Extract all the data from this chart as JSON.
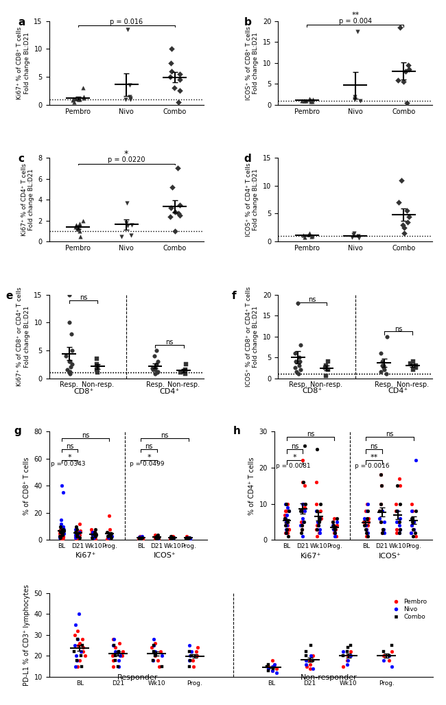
{
  "colors": {
    "pembro": "#FF0000",
    "nivo": "#0000FF",
    "combo": "#000000",
    "dot": "#333333"
  },
  "panel_a": {
    "ylabel": "Ki67⁺ % of CD8⁺ T cells\nFold change BL:D21",
    "ylim": [
      0,
      15
    ],
    "yticks": [
      0,
      5,
      10,
      15
    ],
    "pembro": [
      1.1,
      1.0,
      0.8,
      0.5,
      1.2,
      1.05,
      0.9,
      3.0,
      1.5
    ],
    "nivo": [
      13.5,
      1.0,
      0.9,
      1.5,
      1.2,
      3.5
    ],
    "combo": [
      10.0,
      7.5,
      6.0,
      5.5,
      5.0,
      4.5,
      3.0,
      2.5,
      0.5
    ],
    "sig_text": "p = 0.016",
    "sig_stars": null
  },
  "panel_b": {
    "ylabel": "ICOS⁺ % of CD8⁺ T cells\nFold change BL:D21",
    "ylim": [
      0,
      20
    ],
    "yticks": [
      0,
      5,
      10,
      15,
      20
    ],
    "pembro": [
      1.5,
      1.0,
      0.8,
      1.0,
      1.1,
      0.9,
      1.2,
      1.0,
      0.85
    ],
    "nivo": [
      17.5,
      1.5,
      1.0,
      2.0,
      1.2
    ],
    "combo": [
      18.5,
      9.5,
      8.5,
      8.0,
      5.5,
      5.8,
      0.5
    ],
    "sig_text": "p = 0.004",
    "sig_stars": "**"
  },
  "panel_c": {
    "ylabel": "Ki67⁺ % of CD4⁺ T cells\nFold change BL:D21",
    "ylim": [
      0,
      8
    ],
    "yticks": [
      0,
      2,
      4,
      6,
      8
    ],
    "pembro": [
      1.7,
      1.6,
      1.5,
      1.4,
      1.3,
      1.2,
      1.0,
      0.5,
      2.0
    ],
    "nivo": [
      3.7,
      1.8,
      1.6,
      1.5,
      0.6,
      0.5
    ],
    "combo": [
      7.0,
      5.2,
      3.5,
      3.2,
      2.8,
      2.7,
      2.5,
      2.4,
      1.0
    ],
    "sig_text": "p = 0.0220",
    "sig_stars": "*"
  },
  "panel_d": {
    "ylabel": "ICOS⁺ % of CD4⁺ T cells\nFold change BL:D21",
    "ylim": [
      0,
      15
    ],
    "yticks": [
      0,
      5,
      10,
      15
    ],
    "pembro": [
      1.5,
      1.2,
      1.0,
      0.9,
      1.1,
      1.3,
      0.8
    ],
    "nivo": [
      1.5,
      1.2,
      1.0,
      0.8,
      0.6
    ],
    "combo": [
      11.0,
      7.0,
      5.5,
      4.5,
      3.5,
      3.0,
      2.5,
      1.5
    ],
    "sig_text": null,
    "sig_stars": null
  },
  "panel_e": {
    "ylabel": "Ki67⁺ % of CD8⁺ or CD4⁺ T cells\nFold change BL:D21",
    "ylim": [
      0,
      15
    ],
    "yticks": [
      0,
      5,
      10,
      15
    ],
    "resp_cd8": [
      15,
      10,
      8,
      5,
      4,
      3,
      2.5,
      2,
      1.5,
      1.2,
      1.0,
      0.8,
      3.0
    ],
    "nonr_cd8": [
      3.5,
      2.0,
      2.5,
      1.5,
      1.0
    ],
    "resp_cd4": [
      5,
      4,
      3,
      2.5,
      2,
      1.8,
      1.5,
      1.2,
      1.0,
      0.8,
      1.5
    ],
    "nonr_cd4": [
      2.5,
      1.5,
      1.2,
      1.0,
      0.8
    ]
  },
  "panel_f": {
    "ylabel": "ICOS⁺ % of CD8⁺ or CD4⁺ T cells\nFold change BL:D21",
    "ylim": [
      0,
      20
    ],
    "yticks": [
      0,
      5,
      10,
      15,
      20
    ],
    "resp_cd8": [
      18,
      8,
      6,
      5,
      4,
      3,
      2.5,
      2,
      1.5,
      1.0,
      4.0
    ],
    "nonr_cd8": [
      4.0,
      3.0,
      2.5,
      2.0,
      0.5
    ],
    "resp_cd4": [
      10,
      6,
      4,
      3,
      2.5,
      2.0,
      1.5,
      1.0,
      3.0
    ],
    "nonr_cd4": [
      4.0,
      3.5,
      3.0,
      2.5,
      2.0
    ]
  },
  "panel_g": {
    "ylabel": "% of CD8⁺ T cells",
    "ylim": [
      0,
      80
    ],
    "yticks": [
      0,
      20,
      40,
      60,
      80
    ],
    "ki67_BL_p": [
      5,
      3,
      2,
      1.5,
      7,
      6,
      3,
      4,
      2,
      5,
      1,
      0.5,
      3,
      8,
      5
    ],
    "ki67_BL_n": [
      35,
      40,
      10,
      8,
      6,
      5,
      3,
      2,
      15,
      12
    ],
    "ki67_BL_c": [
      8,
      6,
      4,
      3,
      2,
      5,
      10,
      7,
      3
    ],
    "ki67_D21_p": [
      12,
      8,
      7,
      5,
      6,
      4,
      3,
      2,
      4,
      1,
      6
    ],
    "ki67_D21_n": [
      6,
      4,
      3,
      2,
      8,
      5
    ],
    "ki67_D21_c": [
      5,
      3,
      4,
      2,
      6,
      8,
      10
    ],
    "ki67_Wk10_p": [
      8,
      6,
      4,
      2,
      3,
      5,
      1,
      6
    ],
    "ki67_Wk10_n": [
      5,
      3,
      2,
      4,
      6
    ],
    "ki67_Wk10_c": [
      8,
      4,
      2,
      3,
      5,
      6
    ],
    "ki67_Prog_p": [
      18,
      8,
      5,
      3,
      2,
      4,
      1
    ],
    "ki67_Prog_n": [
      4,
      2,
      3,
      5
    ],
    "ki67_Prog_c": [
      3,
      2,
      4,
      5,
      6
    ],
    "icos_BL_p": [
      2,
      1.5,
      1,
      0.5,
      3,
      2,
      1,
      0.8,
      1.5,
      2,
      1
    ],
    "icos_BL_n": [
      3,
      2,
      1.5,
      1,
      0.8,
      2.5
    ],
    "icos_BL_c": [
      2,
      1.5,
      1,
      0.8,
      1.5,
      2
    ],
    "icos_D21_p": [
      4,
      3,
      2,
      1.5,
      1,
      2,
      3,
      1.5
    ],
    "icos_D21_n": [
      3,
      2,
      1.5,
      1,
      2
    ],
    "icos_D21_c": [
      4,
      2,
      3,
      1.5,
      2,
      1
    ],
    "icos_Wk10_p": [
      3,
      2,
      1.5,
      1,
      2,
      3
    ],
    "icos_Wk10_n": [
      2,
      1.5,
      1,
      2,
      1.5
    ],
    "icos_Wk10_c": [
      3,
      2,
      1.5,
      2,
      1
    ],
    "icos_Prog_p": [
      3,
      2,
      1.5,
      1,
      2
    ],
    "icos_Prog_n": [
      2,
      1.5,
      1,
      2
    ],
    "icos_Prog_c": [
      2,
      1.5,
      1,
      2,
      1.5
    ],
    "pval_ki67": "p = 0.0343",
    "pval_icos": "p = 0.0499"
  },
  "panel_h": {
    "ylabel": "% of CD4⁺ T cells",
    "ylim": [
      0,
      30
    ],
    "yticks": [
      0,
      10,
      20,
      30
    ],
    "ki67_BL_p": [
      10,
      8,
      6,
      5,
      3,
      2,
      4,
      5,
      6,
      7,
      8,
      4,
      3,
      2,
      5
    ],
    "ki67_BL_n": [
      10,
      8,
      6,
      5,
      4,
      3,
      2,
      9,
      7
    ],
    "ki67_BL_c": [
      10,
      8,
      6,
      5,
      4,
      3,
      2,
      1
    ],
    "ki67_D21_p": [
      22,
      16,
      15,
      10,
      9,
      8,
      5,
      4,
      3
    ],
    "ki67_D21_n": [
      10,
      8,
      6,
      5,
      4,
      1
    ],
    "ki67_D21_c": [
      26,
      16,
      10,
      8,
      5,
      4,
      3,
      2
    ],
    "ki67_Wk10_p": [
      16,
      10,
      8,
      6,
      5,
      4,
      3,
      2,
      1
    ],
    "ki67_Wk10_n": [
      8,
      6,
      5,
      4,
      3,
      2
    ],
    "ki67_Wk10_c": [
      25,
      10,
      8,
      6,
      5,
      4,
      3
    ],
    "ki67_Prog_p": [
      6,
      5,
      4,
      3,
      2,
      1
    ],
    "ki67_Prog_n": [
      5,
      4,
      3,
      2,
      1
    ],
    "ki67_Prog_c": [
      6,
      5,
      4,
      3,
      2
    ],
    "icos_BL_p": [
      10,
      8,
      6,
      5,
      3,
      2,
      4,
      5,
      1
    ],
    "icos_BL_n": [
      10,
      8,
      6,
      4,
      3,
      2
    ],
    "icos_BL_c": [
      8,
      6,
      4,
      3,
      2,
      1
    ],
    "icos_D21_p": [
      18,
      15,
      10,
      8,
      5,
      3,
      2
    ],
    "icos_D21_n": [
      8,
      6,
      5,
      3,
      2
    ],
    "icos_D21_c": [
      18,
      15,
      10,
      8,
      5,
      3,
      2
    ],
    "icos_Wk10_p": [
      17,
      15,
      10,
      8,
      5,
      3,
      2
    ],
    "icos_Wk10_n": [
      8,
      6,
      5,
      4,
      3,
      2
    ],
    "icos_Wk10_c": [
      15,
      10,
      8,
      5,
      3,
      2
    ],
    "icos_Prog_p": [
      10,
      8,
      5,
      4,
      3,
      2,
      1
    ],
    "icos_Prog_n": [
      8,
      6,
      5,
      4,
      3,
      2,
      22
    ],
    "icos_Prog_c": [
      8,
      6,
      5,
      3,
      2,
      1
    ],
    "pval_ki67": "p = 0.0081",
    "pval_icos": "p = 0.0016"
  },
  "panel_i": {
    "ylabel": "PD-L1 % of CD3⁺ lymphocytes",
    "ylim": [
      10,
      50
    ],
    "yticks": [
      10,
      20,
      30,
      40,
      50
    ],
    "resp_BL_p": [
      30,
      25,
      22,
      20,
      18,
      28,
      15,
      32,
      24,
      26
    ],
    "resp_BL_n": [
      35,
      28,
      22,
      20,
      18,
      15,
      40,
      25
    ],
    "resp_BL_c": [
      22,
      20,
      18,
      15,
      25,
      28
    ],
    "resp_D21_p": [
      28,
      22,
      20,
      18,
      15,
      24,
      26,
      20
    ],
    "resp_D21_n": [
      25,
      22,
      18,
      20,
      15,
      28
    ],
    "resp_D21_c": [
      22,
      20,
      18,
      15,
      25
    ],
    "resp_Wk10_p": [
      26,
      22,
      20,
      18,
      15,
      24
    ],
    "resp_Wk10_n": [
      25,
      22,
      18,
      20,
      28
    ],
    "resp_Wk10_c": [
      22,
      20,
      18,
      15,
      25
    ],
    "resp_Prog_p": [
      24,
      20,
      18,
      22,
      15
    ],
    "resp_Prog_n": [
      22,
      20,
      18,
      25
    ],
    "resp_Prog_c": [
      20,
      18,
      15,
      22
    ],
    "nonr_BL_p": [
      18,
      15,
      14,
      16,
      13
    ],
    "nonr_BL_n": [
      15,
      14,
      12,
      16,
      13
    ],
    "nonr_BL_c": [
      16,
      15,
      14,
      13
    ],
    "nonr_D21_p": [
      20,
      18,
      15,
      16,
      14
    ],
    "nonr_D21_n": [
      18,
      16,
      14,
      20
    ],
    "nonr_D21_c": [
      22,
      20,
      18,
      25
    ],
    "nonr_Wk10_p": [
      20,
      18,
      15,
      22
    ],
    "nonr_Wk10_n": [
      18,
      16,
      22,
      20
    ],
    "nonr_Wk10_c": [
      24,
      22,
      20,
      25
    ],
    "nonr_Prog_p": [
      20,
      18,
      22
    ],
    "nonr_Prog_n": [
      18,
      20,
      15
    ],
    "nonr_Prog_c": [
      22,
      20,
      25
    ]
  }
}
